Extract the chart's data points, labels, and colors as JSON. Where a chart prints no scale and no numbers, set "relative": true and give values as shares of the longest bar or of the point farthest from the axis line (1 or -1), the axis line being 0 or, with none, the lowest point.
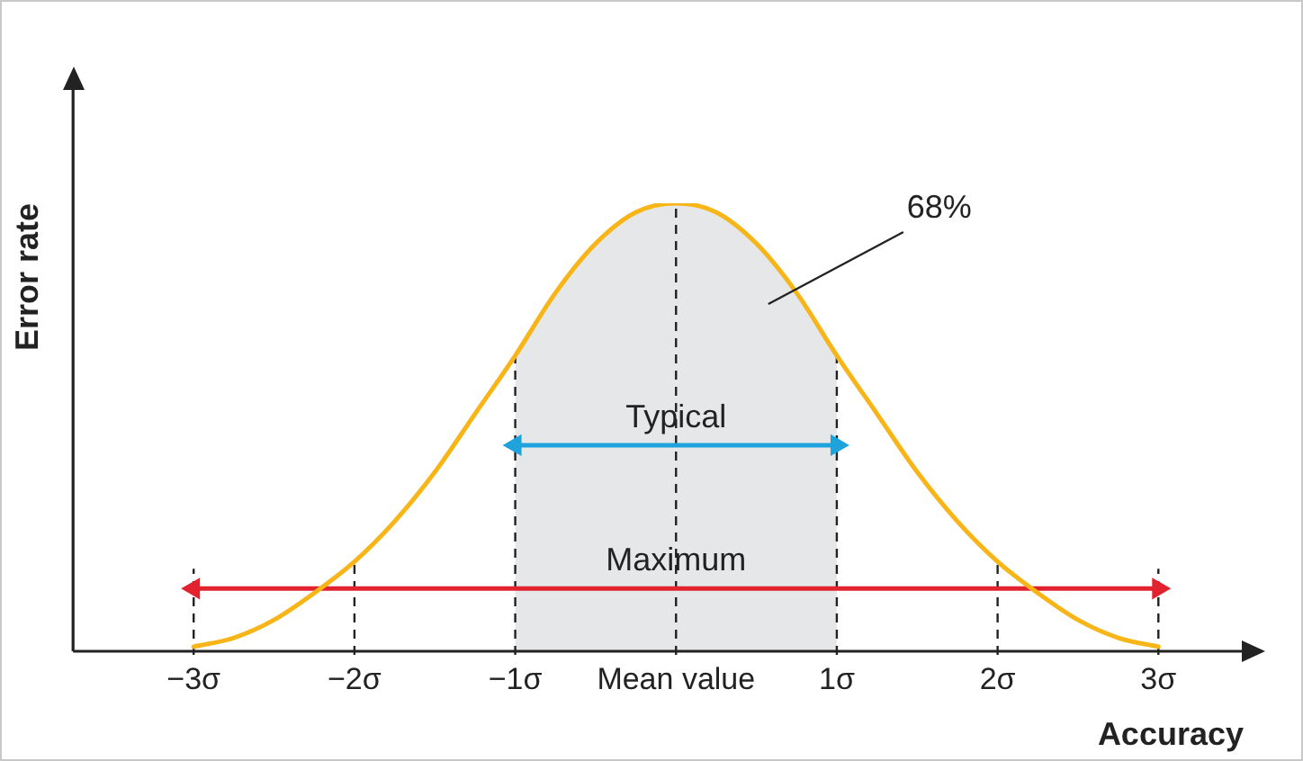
{
  "chart_data": {
    "type": "line",
    "xlabel": "Accuracy",
    "ylabel": "Error rate",
    "relative": true,
    "xlim": [
      -3.75,
      3.53
    ],
    "xticks": [
      {
        "value": -3,
        "label": "−3σ"
      },
      {
        "value": -2,
        "label": "−2σ"
      },
      {
        "value": -1,
        "label": "−1σ"
      },
      {
        "value": 0,
        "label": "Mean value"
      },
      {
        "value": 1,
        "label": "1σ"
      },
      {
        "value": 2,
        "label": "2σ"
      },
      {
        "value": 3,
        "label": "3σ"
      }
    ],
    "grid": false,
    "legend": false,
    "tick_labels": "x",
    "series": [
      {
        "color": "#f7b518",
        "marker": "none",
        "x": [
          -3,
          -2.75,
          -2.5,
          -2.25,
          -2,
          -1.75,
          -1.5,
          -1.25,
          -1,
          -0.75,
          -0.5,
          -0.25,
          0,
          0.25,
          0.5,
          0.75,
          1,
          1.25,
          1.5,
          1.75,
          2,
          2.25,
          2.5,
          2.75,
          3
        ],
        "values": [
          0.01,
          0.03,
          0.07,
          0.13,
          0.2,
          0.29,
          0.4,
          0.53,
          0.66,
          0.8,
          0.91,
          0.98,
          1,
          0.98,
          0.91,
          0.8,
          0.66,
          0.53,
          0.4,
          0.29,
          0.2,
          0.13,
          0.07,
          0.03,
          0.01
        ]
      },
      {
        "name": "Typical",
        "color": "#1fa3dd",
        "marker": "triangle",
        "x": [
          -1,
          1
        ],
        "values": [
          0.46,
          0.46
        ]
      },
      {
        "name": "Maximum",
        "color": "#e3222f",
        "marker": "triangle",
        "x": [
          -3,
          3
        ],
        "values": [
          0.14,
          0.14
        ]
      }
    ],
    "bands": [
      {
        "axis": "x",
        "from": -1,
        "to": 1,
        "color": "#e6e7e8"
      }
    ],
    "ref_lines": [
      {
        "axis": "x",
        "value": -3,
        "line_style": "dashed"
      },
      {
        "axis": "x",
        "value": -2,
        "line_style": "dashed"
      },
      {
        "axis": "x",
        "value": -1,
        "line_style": "dashed"
      },
      {
        "axis": "x",
        "value": 0,
        "line_style": "dashed"
      },
      {
        "axis": "x",
        "value": 1,
        "line_style": "dashed"
      },
      {
        "axis": "x",
        "value": 2,
        "line_style": "dashed"
      },
      {
        "axis": "x",
        "value": 3,
        "line_style": "dashed"
      }
    ],
    "annotations": [
      "68%"
    ]
  }
}
